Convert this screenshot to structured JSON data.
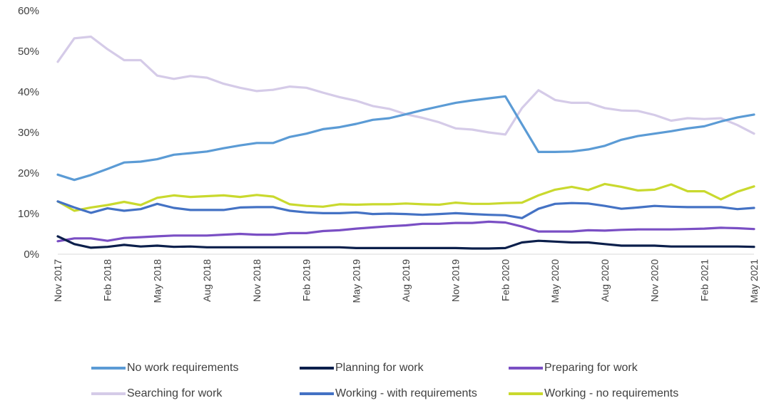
{
  "chart_data": {
    "type": "line",
    "title": "",
    "xlabel": "",
    "ylabel": "",
    "ylim": [
      0,
      0.6
    ],
    "y_ticks": [
      {
        "value": 0,
        "label": "0%"
      },
      {
        "value": 0.1,
        "label": "10%"
      },
      {
        "value": 0.2,
        "label": "20%"
      },
      {
        "value": 0.3,
        "label": "30%"
      },
      {
        "value": 0.4,
        "label": "40%"
      },
      {
        "value": 0.5,
        "label": "50%"
      },
      {
        "value": 0.6,
        "label": "60%"
      }
    ],
    "grid": false,
    "legend_position": "bottom",
    "x": [
      "Nov 2017",
      "Dec 2017",
      "Jan 2018",
      "Feb 2018",
      "Mar 2018",
      "Apr 2018",
      "May 2018",
      "Jun 2018",
      "Jul 2018",
      "Aug 2018",
      "Sep 2018",
      "Oct 2018",
      "Nov 2018",
      "Dec 2018",
      "Jan 2019",
      "Feb 2019",
      "Mar 2019",
      "Apr 2019",
      "May 2019",
      "Jun 2019",
      "Jul 2019",
      "Aug 2019",
      "Sep 2019",
      "Oct 2019",
      "Nov 2019",
      "Dec 2019",
      "Jan 2020",
      "Feb 2020",
      "Mar 2020",
      "Apr 2020",
      "May 2020",
      "Jun 2020",
      "Jul 2020",
      "Aug 2020",
      "Sep 2020",
      "Oct 2020",
      "Nov 2020",
      "Dec 2020",
      "Jan 2021",
      "Feb 2021",
      "Mar 2021",
      "Apr 2021",
      "May 2021"
    ],
    "x_tick_labels": [
      {
        "index": 0,
        "label": "Nov 2017"
      },
      {
        "index": 3,
        "label": "Feb 2018"
      },
      {
        "index": 6,
        "label": "May 2018"
      },
      {
        "index": 9,
        "label": "Aug 2018"
      },
      {
        "index": 12,
        "label": "Nov 2018"
      },
      {
        "index": 15,
        "label": "Feb 2019"
      },
      {
        "index": 18,
        "label": "May 2019"
      },
      {
        "index": 21,
        "label": "Aug 2019"
      },
      {
        "index": 24,
        "label": "Nov 2019"
      },
      {
        "index": 27,
        "label": "Feb 2020"
      },
      {
        "index": 30,
        "label": "May 2020"
      },
      {
        "index": 33,
        "label": "Aug 2020"
      },
      {
        "index": 36,
        "label": "Nov 2020"
      },
      {
        "index": 39,
        "label": "Feb 2021"
      },
      {
        "index": 42,
        "label": "May 2021"
      }
    ],
    "series": [
      {
        "name": "No work requirements",
        "color": "#5b9bd5",
        "values": [
          0.196,
          0.183,
          0.195,
          0.21,
          0.226,
          0.228,
          0.234,
          0.245,
          0.249,
          0.253,
          0.261,
          0.268,
          0.274,
          0.274,
          0.289,
          0.297,
          0.308,
          0.313,
          0.321,
          0.331,
          0.335,
          0.345,
          0.355,
          0.364,
          0.373,
          0.379,
          0.384,
          0.389,
          0.32,
          0.252,
          0.252,
          0.253,
          0.258,
          0.267,
          0.282,
          0.291,
          0.297,
          0.303,
          0.31,
          0.315,
          0.327,
          0.337,
          0.344
        ]
      },
      {
        "name": "Planning for work",
        "color": "#0b1f4b",
        "values": [
          0.044,
          0.025,
          0.016,
          0.018,
          0.023,
          0.019,
          0.021,
          0.018,
          0.019,
          0.017,
          0.017,
          0.017,
          0.017,
          0.017,
          0.017,
          0.017,
          0.017,
          0.017,
          0.015,
          0.015,
          0.015,
          0.015,
          0.015,
          0.015,
          0.015,
          0.014,
          0.014,
          0.015,
          0.029,
          0.033,
          0.031,
          0.029,
          0.029,
          0.025,
          0.021,
          0.021,
          0.021,
          0.019,
          0.019,
          0.019,
          0.019,
          0.019,
          0.018
        ]
      },
      {
        "name": "Preparing for work",
        "color": "#7a4fc4",
        "values": [
          0.032,
          0.039,
          0.039,
          0.033,
          0.04,
          0.042,
          0.044,
          0.046,
          0.046,
          0.046,
          0.048,
          0.05,
          0.048,
          0.048,
          0.052,
          0.052,
          0.057,
          0.059,
          0.063,
          0.066,
          0.069,
          0.071,
          0.075,
          0.075,
          0.077,
          0.077,
          0.08,
          0.078,
          0.068,
          0.056,
          0.056,
          0.056,
          0.059,
          0.058,
          0.06,
          0.061,
          0.061,
          0.061,
          0.062,
          0.063,
          0.065,
          0.064,
          0.062
        ]
      },
      {
        "name": "Searching for work",
        "color": "#d5cbe8",
        "values": [
          0.474,
          0.532,
          0.536,
          0.505,
          0.478,
          0.478,
          0.44,
          0.432,
          0.439,
          0.435,
          0.42,
          0.41,
          0.402,
          0.405,
          0.413,
          0.41,
          0.398,
          0.387,
          0.378,
          0.365,
          0.358,
          0.345,
          0.336,
          0.325,
          0.31,
          0.307,
          0.3,
          0.295,
          0.36,
          0.404,
          0.38,
          0.373,
          0.373,
          0.36,
          0.354,
          0.353,
          0.343,
          0.329,
          0.335,
          0.333,
          0.335,
          0.318,
          0.297
        ]
      },
      {
        "name": "Working - with requirements",
        "color": "#4472c4",
        "values": [
          0.13,
          0.115,
          0.102,
          0.113,
          0.107,
          0.111,
          0.124,
          0.114,
          0.109,
          0.109,
          0.109,
          0.115,
          0.116,
          0.116,
          0.107,
          0.103,
          0.101,
          0.101,
          0.103,
          0.099,
          0.1,
          0.099,
          0.097,
          0.099,
          0.101,
          0.099,
          0.097,
          0.096,
          0.089,
          0.112,
          0.124,
          0.126,
          0.125,
          0.119,
          0.112,
          0.115,
          0.119,
          0.117,
          0.116,
          0.116,
          0.116,
          0.111,
          0.114
        ]
      },
      {
        "name": "Working - no requirements",
        "color": "#c9d92e",
        "values": [
          0.13,
          0.107,
          0.115,
          0.121,
          0.129,
          0.121,
          0.139,
          0.145,
          0.141,
          0.143,
          0.145,
          0.141,
          0.146,
          0.142,
          0.123,
          0.119,
          0.117,
          0.123,
          0.122,
          0.123,
          0.123,
          0.125,
          0.123,
          0.122,
          0.127,
          0.124,
          0.124,
          0.126,
          0.127,
          0.145,
          0.159,
          0.166,
          0.158,
          0.173,
          0.166,
          0.157,
          0.159,
          0.172,
          0.155,
          0.155,
          0.135,
          0.154,
          0.167
        ]
      }
    ]
  }
}
